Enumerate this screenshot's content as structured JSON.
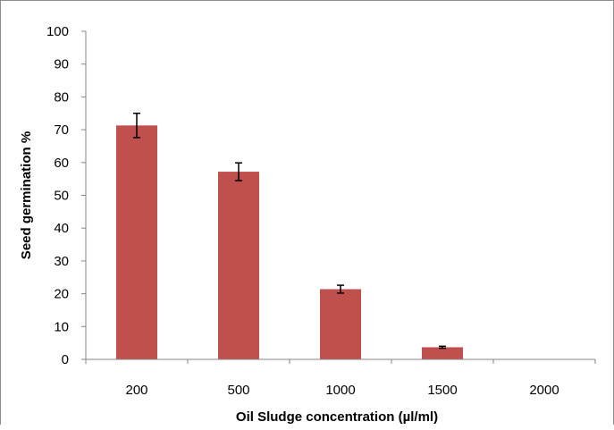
{
  "chart_data": {
    "type": "bar",
    "title": "",
    "xlabel": "Oil Sludge concentration (µl/ml)",
    "ylabel": "Seed germination %",
    "categories": [
      "200",
      "500",
      "1000",
      "1500",
      "2000"
    ],
    "values": [
      71.3,
      57.2,
      21.4,
      3.7,
      0
    ],
    "error": [
      3.7,
      2.7,
      1.2,
      0.3,
      0
    ],
    "ylim": [
      0,
      100
    ],
    "yticks": [
      "0",
      "10",
      "20",
      "30",
      "40",
      "50",
      "60",
      "70",
      "80",
      "90",
      "100"
    ],
    "grid": false,
    "legend": "none",
    "bar_color": "#c0504d"
  }
}
